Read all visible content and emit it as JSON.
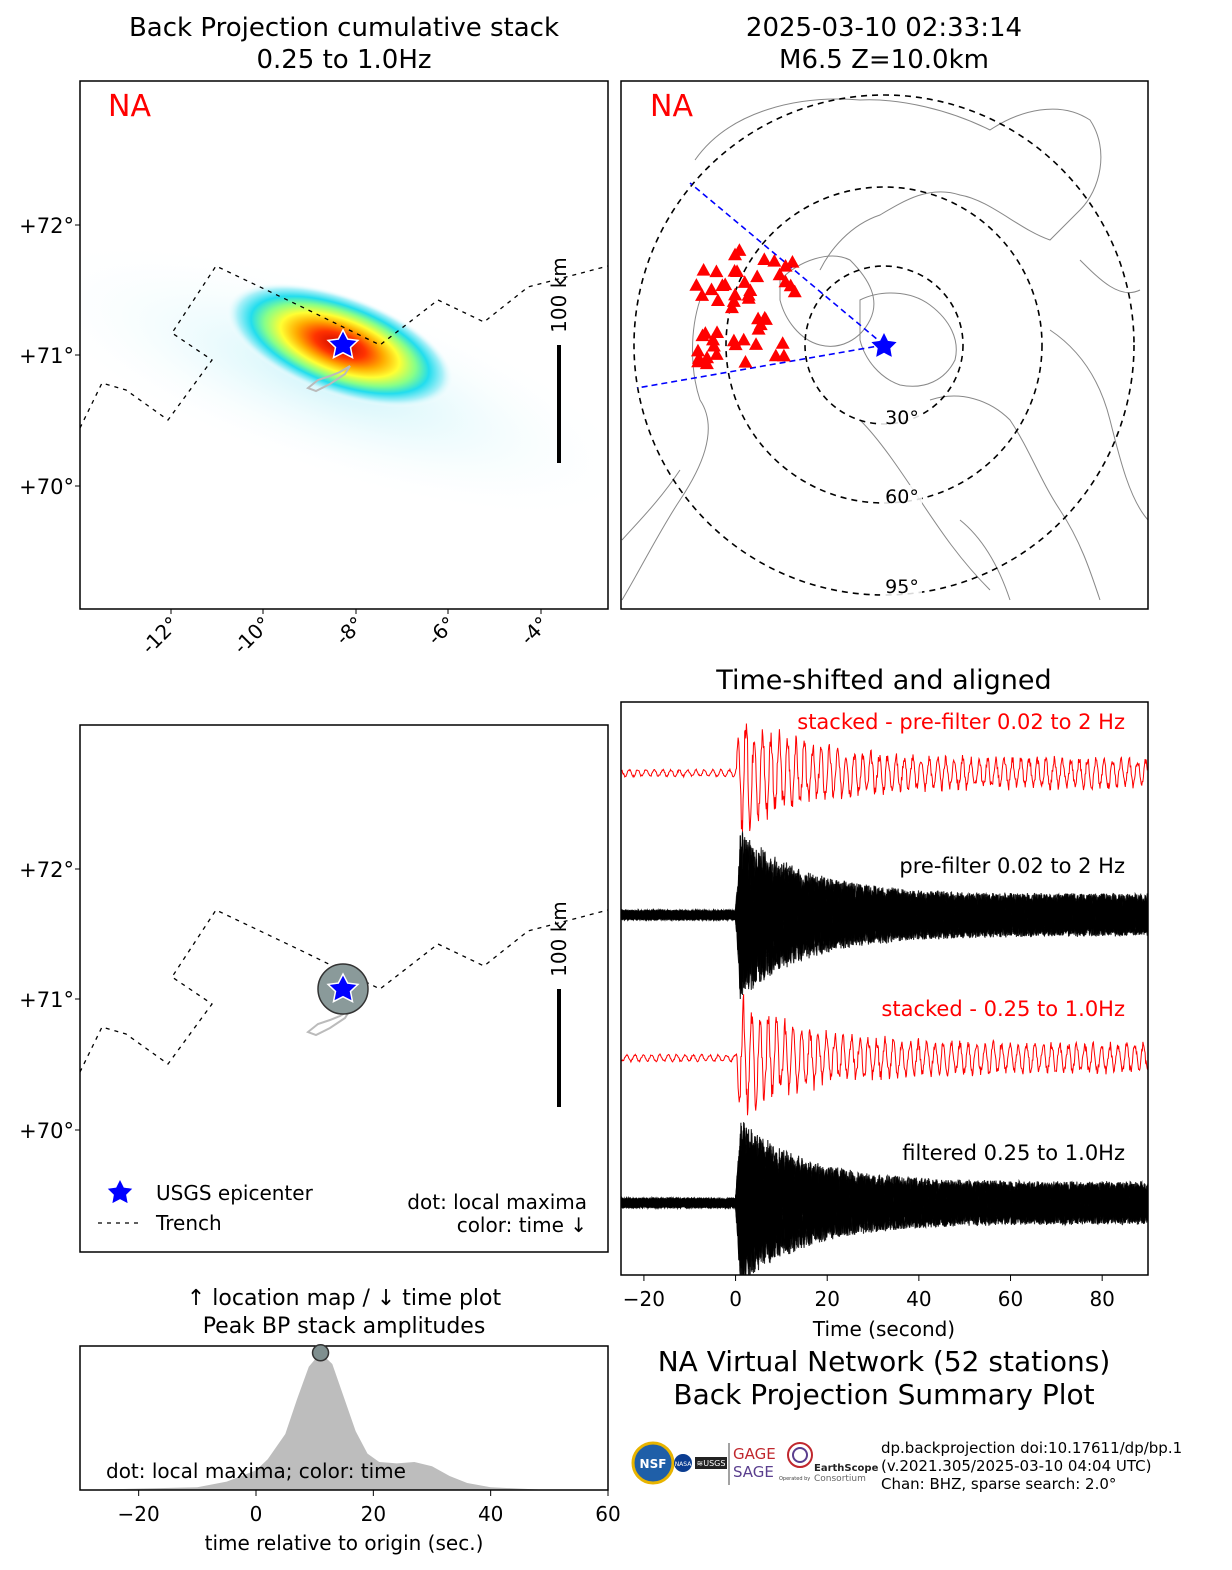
{
  "titles": {
    "bp_title_line1": "Back Projection cumulative stack",
    "bp_title_line2": "0.25 to 1.0Hz",
    "event_line1": "2025-03-10 02:33:14",
    "event_line2": "M6.5 Z=10.0km",
    "traces_title": "Time-shifted and aligned",
    "peak_title_line1": "↑ location map / ↓ time plot",
    "peak_title_line2": "Peak BP stack amplitudes",
    "summary_line1": "NA Virtual Network (52 stations)",
    "summary_line2": "Back Projection Summary Plot"
  },
  "maps": {
    "network_label": "NA",
    "scale_bar_label": "100 km",
    "lat_ticks": [
      "+72°",
      "+71°",
      "+70°"
    ],
    "lon_ticks": [
      "-12°",
      "-10°",
      "-8°",
      "-6°",
      "-4°"
    ],
    "distance_rings": [
      "30°",
      "60°",
      "95°"
    ],
    "legend": {
      "epicenter": "USGS epicenter",
      "trench": "Trench",
      "note_line1": "dot: local maxima",
      "note_line2": "color: time ↓"
    },
    "station_count": 52
  },
  "traces": {
    "labels": {
      "stacked_prefilter": "stacked - pre-filter 0.02 to 2 Hz",
      "prefilter": "pre-filter 0.02 to 2 Hz",
      "stacked_filtered": "stacked - 0.25 to 1.0Hz",
      "filtered": "filtered 0.25 to 1.0Hz"
    },
    "xlabel": "Time (second)"
  },
  "peak": {
    "note": "dot: local maxima; color: time",
    "xlabel": "time relative to origin (sec.)"
  },
  "credits": {
    "line1": "dp.backprojection doi:10.17611/dp/bp.1",
    "line2": "(v.2021.305/2025-03-10 04:04 UTC)",
    "line3": "Chan: BHZ, sparse search: 2.0°",
    "logo_gage": "GAGE",
    "logo_sage": "SAGE",
    "logo_earthscope": "EarthScope",
    "logo_consortium": "Consortium",
    "logo_usgs": "≋USGS",
    "logo_nsf": "NSF",
    "logo_nasa": "NASA",
    "logo_operated": "Operated by"
  },
  "colors": {
    "red": "#ff0000",
    "blue": "#0000ff",
    "gray_fill": "#bdbdbd"
  },
  "chart_data": [
    {
      "type": "line",
      "name": "Time-shifted and aligned",
      "xlabel": "Time (second)",
      "xlim": [
        -25,
        90
      ],
      "xticks": [
        -20,
        0,
        20,
        40,
        60,
        80
      ],
      "series": [
        {
          "name": "stacked - pre-filter 0.02 to 2 Hz",
          "color": "#ff0000"
        },
        {
          "name": "pre-filter 0.02 to 2 Hz",
          "color": "#000000"
        },
        {
          "name": "stacked - 0.25 to 1.0Hz",
          "color": "#ff0000"
        },
        {
          "name": "filtered 0.25 to 1.0Hz",
          "color": "#000000"
        }
      ]
    },
    {
      "type": "area",
      "name": "Peak BP stack amplitudes",
      "xlabel": "time relative to origin (sec.)",
      "xlim": [
        -30,
        60
      ],
      "xticks": [
        -20,
        0,
        20,
        40,
        60
      ],
      "x": [
        -30,
        -10,
        -5,
        0,
        2,
        5,
        7,
        9,
        11,
        13,
        15,
        17,
        19,
        21,
        24,
        27,
        30,
        33,
        36,
        40,
        45,
        50,
        60
      ],
      "values": [
        0,
        0.02,
        0.06,
        0.14,
        0.22,
        0.4,
        0.65,
        0.88,
        0.98,
        0.9,
        0.66,
        0.42,
        0.26,
        0.2,
        0.19,
        0.2,
        0.17,
        0.1,
        0.05,
        0.02,
        0.01,
        0.0,
        0.0
      ],
      "local_maximum": {
        "x": 11,
        "y": 0.98
      }
    }
  ]
}
